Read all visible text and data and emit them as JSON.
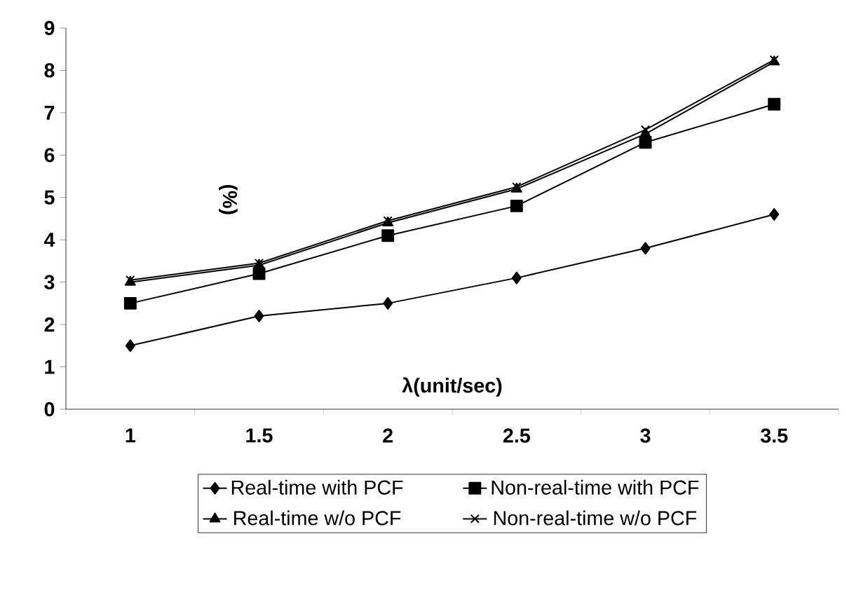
{
  "chart_data": {
    "type": "line",
    "xlabel": "λ(unit/sec)",
    "ylabel": "(%)",
    "categories": [
      "1",
      "1.5",
      "2",
      "2.5",
      "3",
      "3.5"
    ],
    "series": [
      {
        "name": "Real-time with PCF",
        "color": "#000000",
        "marker": "diamond",
        "values": [
          1.5,
          2.2,
          2.5,
          3.1,
          3.8,
          4.6
        ]
      },
      {
        "name": "Non-real-time with PCF",
        "color": "#000000",
        "marker": "square",
        "values": [
          2.5,
          3.2,
          4.1,
          4.8,
          6.3,
          7.2
        ]
      },
      {
        "name": "Real-time w/o PCF",
        "color": "#000000",
        "marker": "triangle",
        "values": [
          3.0,
          3.4,
          4.4,
          5.2,
          6.5,
          8.2
        ]
      },
      {
        "name": "Non-real-time w/o PCF",
        "color": "#000000",
        "marker": "cross",
        "values": [
          3.05,
          3.45,
          4.45,
          5.25,
          6.6,
          8.25
        ]
      }
    ],
    "ylim": [
      0,
      9
    ],
    "yticks": [
      0,
      1,
      2,
      3,
      4,
      5,
      6,
      7,
      8,
      9
    ],
    "grid": false,
    "legend": "bottom",
    "line_style": "solid"
  }
}
